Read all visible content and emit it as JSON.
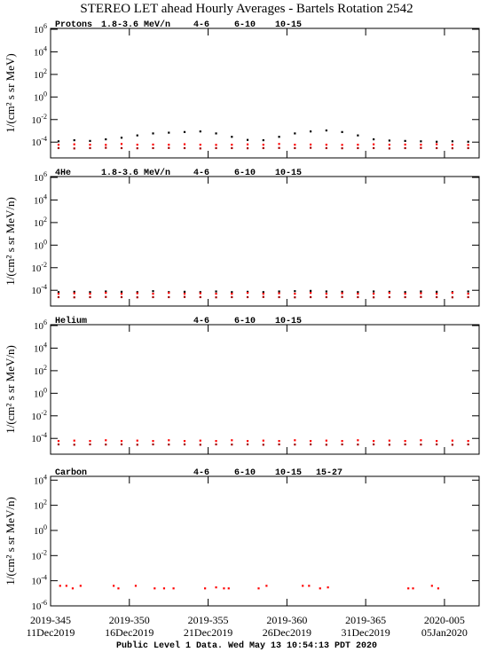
{
  "title": "STEREO LET ahead Hourly Averages - Bartels Rotation 2542",
  "footer": "Public Level 1 Data. Wed May 13 10:54:13 PDT 2020",
  "x_axis": {
    "xlim": [
      345,
      372.2
    ],
    "xticks": [
      {
        "value": 345,
        "label": "2019-345",
        "date": "11Dec2019"
      },
      {
        "value": 350,
        "label": "2019-350",
        "date": "16Dec2019"
      },
      {
        "value": 355,
        "label": "2019-355",
        "date": "21Dec2019"
      },
      {
        "value": 360,
        "label": "2019-360",
        "date": "26Dec2019"
      },
      {
        "value": 365,
        "label": "2019-365",
        "date": "31Dec2019"
      },
      {
        "value": 370,
        "label": "2020-005",
        "date": "05Jan2020"
      }
    ]
  },
  "chart_data": [
    {
      "type": "scatter",
      "label": "Protons",
      "ylabel": "1/(cm² s sr MeV)",
      "log": true,
      "ylim": [
        4e-06,
        1200000
      ],
      "yticks": [
        {
          "value": 1000000,
          "label": "10",
          "sup": "6"
        },
        {
          "value": 10000,
          "label": "10",
          "sup": "4"
        },
        {
          "value": 100,
          "label": "10",
          "sup": "2"
        },
        {
          "value": 1,
          "label": "10",
          "sup": "0"
        },
        {
          "value": 0.01,
          "label": "10",
          "sup": "-2"
        },
        {
          "value": 0.0001,
          "label": "10",
          "sup": "-4"
        }
      ],
      "series": [
        {
          "name": "1.8-3.6 MeV/n",
          "color": "#000000",
          "x": [
            345.5,
            346.5,
            347.5,
            348.5,
            349.5,
            350.5,
            351.5,
            352.5,
            353.5,
            354.5,
            355.5,
            356.5,
            357.5,
            358.5,
            359.5,
            360.5,
            361.5,
            362.5,
            363.5,
            364.5,
            365.5,
            366.5,
            367.5,
            368.5,
            369.5,
            370.5,
            371.5
          ],
          "values": [
            0.00012,
            0.00015,
            0.00013,
            0.00018,
            0.00025,
            0.0004,
            0.0006,
            0.0007,
            0.0008,
            0.0009,
            0.0006,
            0.0003,
            0.00016,
            0.00015,
            0.0003,
            0.0006,
            0.0009,
            0.0011,
            0.0008,
            0.0004,
            0.00018,
            0.00014,
            0.00013,
            0.00012,
            0.00011,
            0.00012,
            0.00011
          ]
        },
        {
          "name": "4-6",
          "color": "#a00000",
          "x": [
            345.5,
            346.5,
            347.5,
            348.5,
            349.5,
            350.5,
            351.5,
            352.5,
            353.5,
            354.5,
            355.5,
            356.5,
            357.5,
            358.5,
            359.5,
            360.5,
            361.5,
            362.5,
            363.5,
            364.5,
            365.5,
            366.5,
            367.5,
            368.5,
            369.5,
            370.5,
            371.5
          ],
          "values": [
            3e-05,
            2.8e-05,
            3e-05,
            3.2e-05,
            3e-05,
            2.9e-05,
            3e-05,
            3.1e-05,
            3e-05,
            2.8e-05,
            3e-05,
            3e-05,
            2.9e-05,
            3e-05,
            3.1e-05,
            3e-05,
            3.2e-05,
            3e-05,
            2.9e-05,
            3e-05,
            3e-05,
            2.8e-05,
            3e-05,
            3.1e-05,
            3e-05,
            2.9e-05,
            3e-05
          ]
        },
        {
          "name": "6-10",
          "color": "#ff0000",
          "x": [
            345.5,
            346.5,
            347.5,
            348.5,
            349.5,
            350.5,
            351.5,
            352.5,
            353.5,
            354.5,
            355.5,
            356.5,
            357.5,
            358.5,
            359.5,
            360.5,
            361.5,
            362.5,
            363.5,
            364.5,
            365.5,
            366.5,
            367.5,
            368.5,
            369.5,
            370.5,
            371.5
          ],
          "values": [
            6e-05,
            6.5e-05,
            6e-05,
            5.8e-05,
            7e-05,
            6e-05,
            6.2e-05,
            6e-05,
            6.6e-05,
            6e-05,
            5.8e-05,
            6e-05,
            6.4e-05,
            6e-05,
            7e-05,
            6e-05,
            6.2e-05,
            6e-05,
            5.8e-05,
            6e-05,
            6.5e-05,
            6e-05,
            6.2e-05,
            6e-05,
            6.6e-05,
            6e-05,
            5.8e-05
          ]
        },
        {
          "name": "10-15",
          "color": "#808080",
          "x": [],
          "values": []
        }
      ]
    },
    {
      "type": "scatter",
      "label": "4He",
      "ylabel": "1/(cm² s sr MeV/n)",
      "log": true,
      "ylim": [
        4e-06,
        1200000
      ],
      "yticks": [
        {
          "value": 1000000,
          "label": "10",
          "sup": "6"
        },
        {
          "value": 10000,
          "label": "10",
          "sup": "4"
        },
        {
          "value": 100,
          "label": "10",
          "sup": "2"
        },
        {
          "value": 1,
          "label": "10",
          "sup": "0"
        },
        {
          "value": 0.01,
          "label": "10",
          "sup": "-2"
        },
        {
          "value": 0.0001,
          "label": "10",
          "sup": "-4"
        }
      ],
      "series": [
        {
          "name": "1.8-3.6 MeV/n",
          "color": "#000000",
          "x": [
            345.5,
            346.5,
            347.5,
            348.5,
            349.5,
            350.5,
            351.5,
            352.5,
            353.5,
            354.5,
            355.5,
            356.5,
            357.5,
            358.5,
            359.5,
            360.5,
            361.5,
            362.5,
            363.5,
            364.5,
            365.5,
            366.5,
            367.5,
            368.5,
            369.5,
            370.5,
            371.5
          ],
          "values": [
            7e-05,
            7.5e-05,
            7e-05,
            8e-05,
            7.5e-05,
            7e-05,
            8.5e-05,
            7e-05,
            7.5e-05,
            7e-05,
            8e-05,
            7e-05,
            7.5e-05,
            7e-05,
            8e-05,
            8.5e-05,
            9e-05,
            8e-05,
            7.5e-05,
            7e-05,
            8e-05,
            7.5e-05,
            7e-05,
            8e-05,
            7.5e-05,
            7e-05,
            8e-05
          ]
        },
        {
          "name": "4-6",
          "color": "#a00000",
          "x": [
            345.5,
            346.5,
            347.5,
            348.5,
            349.5,
            350.5,
            351.5,
            352.5,
            353.5,
            354.5,
            355.5,
            356.5,
            357.5,
            358.5,
            359.5,
            360.5,
            361.5,
            362.5,
            363.5,
            364.5,
            365.5,
            366.5,
            367.5,
            368.5,
            369.5,
            370.5,
            371.5
          ],
          "values": [
            2.5e-05,
            2.4e-05,
            2.5e-05,
            2.6e-05,
            2.5e-05,
            2.4e-05,
            2.5e-05,
            2.5e-05,
            2.6e-05,
            2.5e-05,
            2.4e-05,
            2.5e-05,
            2.5e-05,
            2.6e-05,
            2.5e-05,
            2.4e-05,
            2.5e-05,
            2.5e-05,
            2.6e-05,
            2.5e-05,
            2.4e-05,
            2.5e-05,
            2.5e-05,
            2.6e-05,
            2.5e-05,
            2.4e-05,
            2.5e-05
          ]
        },
        {
          "name": "6-10",
          "color": "#ff0000",
          "x": [
            345.5,
            346.5,
            347.5,
            348.5,
            349.5,
            350.5,
            351.5,
            352.5,
            353.5,
            354.5,
            355.5,
            356.5,
            357.5,
            358.5,
            359.5,
            360.5,
            361.5,
            362.5,
            363.5,
            364.5,
            365.5,
            366.5,
            367.5,
            368.5,
            369.5,
            370.5,
            371.5
          ],
          "values": [
            5e-05,
            5.5e-05,
            5e-05,
            6e-05,
            5e-05,
            5.5e-05,
            5e-05,
            6e-05,
            5e-05,
            5.5e-05,
            5e-05,
            5e-05,
            6e-05,
            5e-05,
            5.5e-05,
            5e-05,
            6e-05,
            5e-05,
            5.5e-05,
            5e-05,
            5e-05,
            6e-05,
            5e-05,
            5.5e-05,
            5e-05,
            6e-05,
            5e-05
          ]
        },
        {
          "name": "10-15",
          "color": "#808080",
          "x": [],
          "values": []
        }
      ]
    },
    {
      "type": "scatter",
      "label": "Helium",
      "ylabel": "1/(cm² s sr MeV/n)",
      "log": true,
      "ylim": [
        4e-06,
        1200000
      ],
      "yticks": [
        {
          "value": 1000000,
          "label": "10",
          "sup": "6"
        },
        {
          "value": 10000,
          "label": "10",
          "sup": "4"
        },
        {
          "value": 100,
          "label": "10",
          "sup": "2"
        },
        {
          "value": 1,
          "label": "10",
          "sup": "0"
        },
        {
          "value": 0.01,
          "label": "10",
          "sup": "-2"
        },
        {
          "value": 0.0001,
          "label": "10",
          "sup": "-4"
        }
      ],
      "series": [
        {
          "name": "4-6",
          "color": "#a00000",
          "x": [
            345.5,
            346.5,
            347.5,
            348.5,
            349.5,
            350.5,
            351.5,
            352.5,
            353.5,
            354.5,
            355.5,
            356.5,
            357.5,
            358.5,
            359.5,
            360.5,
            361.5,
            362.5,
            363.5,
            364.5,
            365.5,
            366.5,
            367.5,
            368.5,
            369.5,
            370.5,
            371.5
          ],
          "values": [
            3e-05,
            2.8e-05,
            3e-05,
            2.9e-05,
            3e-05,
            2.8e-05,
            3e-05,
            2.9e-05,
            3e-05,
            2.8e-05,
            3e-05,
            2.9e-05,
            3e-05,
            2.8e-05,
            3e-05,
            2.9e-05,
            3e-05,
            2.8e-05,
            3e-05,
            2.9e-05,
            3e-05,
            2.8e-05,
            3e-05,
            2.9e-05,
            3e-05,
            2.8e-05,
            3e-05
          ]
        },
        {
          "name": "6-10",
          "color": "#ff0000",
          "x": [
            345.5,
            346.5,
            347.5,
            348.5,
            349.5,
            350.5,
            351.5,
            352.5,
            353.5,
            354.5,
            355.5,
            356.5,
            357.5,
            358.5,
            359.5,
            360.5,
            361.5,
            362.5,
            363.5,
            364.5,
            365.5,
            366.5,
            367.5,
            368.5,
            369.5,
            370.5,
            371.5
          ],
          "values": [
            6e-05,
            6.5e-05,
            6e-05,
            7e-05,
            6e-05,
            6.5e-05,
            6e-05,
            7e-05,
            6e-05,
            6.5e-05,
            6e-05,
            7e-05,
            6e-05,
            6.5e-05,
            6e-05,
            7e-05,
            6e-05,
            6.5e-05,
            6e-05,
            7e-05,
            6e-05,
            6.5e-05,
            6e-05,
            7e-05,
            6e-05,
            6.5e-05,
            6e-05
          ]
        },
        {
          "name": "10-15",
          "color": "#808080",
          "x": [],
          "values": []
        }
      ]
    },
    {
      "type": "scatter",
      "label": "Carbon",
      "ylabel": "1/(cm² s sr MeV/n)",
      "log": true,
      "ylim": [
        1e-06,
        20000
      ],
      "yticks": [
        {
          "value": 10000,
          "label": "10",
          "sup": "4"
        },
        {
          "value": 100,
          "label": "10",
          "sup": "2"
        },
        {
          "value": 1,
          "label": "10",
          "sup": "0"
        },
        {
          "value": 0.01,
          "label": "10",
          "sup": "-2"
        },
        {
          "value": 0.0001,
          "label": "10",
          "sup": "-4"
        },
        {
          "value": 1e-06,
          "label": "10",
          "sup": "-6"
        }
      ],
      "series": [
        {
          "name": "4-6",
          "color": "#a00000",
          "x": [],
          "values": []
        },
        {
          "name": "6-10",
          "color": "#ff0000",
          "x": [
            345.6,
            346.0,
            346.4,
            346.9,
            349.0,
            349.3,
            350.4,
            351.6,
            352.2,
            352.8,
            354.8,
            355.5,
            356.0,
            356.3,
            358.2,
            358.7,
            361.0,
            361.4,
            362.1,
            362.6,
            367.7,
            368.0,
            369.2,
            369.6
          ],
          "values": [
            4e-05,
            4e-05,
            2.5e-05,
            4e-05,
            4e-05,
            2.5e-05,
            4e-05,
            2.5e-05,
            2.5e-05,
            2.5e-05,
            2.5e-05,
            3e-05,
            2.5e-05,
            2.5e-05,
            2.5e-05,
            4e-05,
            4e-05,
            4e-05,
            2.5e-05,
            3e-05,
            2.5e-05,
            2.5e-05,
            4e-05,
            2.5e-05
          ]
        },
        {
          "name": "10-15",
          "color": "#808080",
          "x": [],
          "values": []
        },
        {
          "name": "15-27",
          "color": "#0000ff",
          "x": [],
          "values": []
        }
      ]
    }
  ]
}
